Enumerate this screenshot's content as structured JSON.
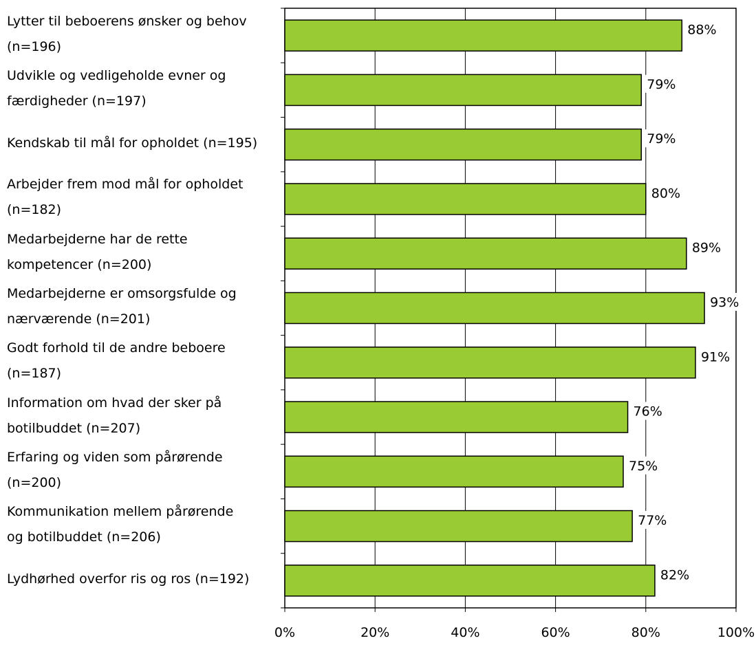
{
  "chart_data": {
    "type": "bar",
    "orientation": "horizontal",
    "categories": [
      "Lytter til beboerens ønsker og behov\n(n=196)",
      "Udvikle og vedligeholde evner og\nfærdigheder (n=197)",
      "Kendskab til mål for opholdet (n=195)",
      "Arbejder frem mod mål for opholdet\n(n=182)",
      "Medarbejderne har de rette\nkompetencer (n=200)",
      "Medarbejderne er omsorgsfulde og\nnærværende (n=201)",
      "Godt forhold til de andre beboere\n(n=187)",
      "Information om hvad der sker på\nbotilbuddet (n=207)",
      "Erfaring og viden som pårørende\n(n=200)",
      "Kommunikation mellem pårørende\nog botilbuddet (n=206)",
      "Lydhørhed overfor ris og ros (n=192)"
    ],
    "values": [
      88,
      79,
      79,
      80,
      89,
      93,
      91,
      76,
      75,
      77,
      82
    ],
    "data_labels": [
      "88%",
      "79%",
      "79%",
      "80%",
      "89%",
      "93%",
      "91%",
      "76%",
      "75%",
      "77%",
      "82%"
    ],
    "xlim": [
      0,
      100
    ],
    "x_ticks": [
      0,
      20,
      40,
      60,
      80,
      100
    ],
    "x_tick_labels": [
      "0%",
      "20%",
      "40%",
      "60%",
      "80%",
      "100%"
    ],
    "grid": true,
    "bar_color": "#99cc33",
    "bar_edge_color": "#000000"
  }
}
